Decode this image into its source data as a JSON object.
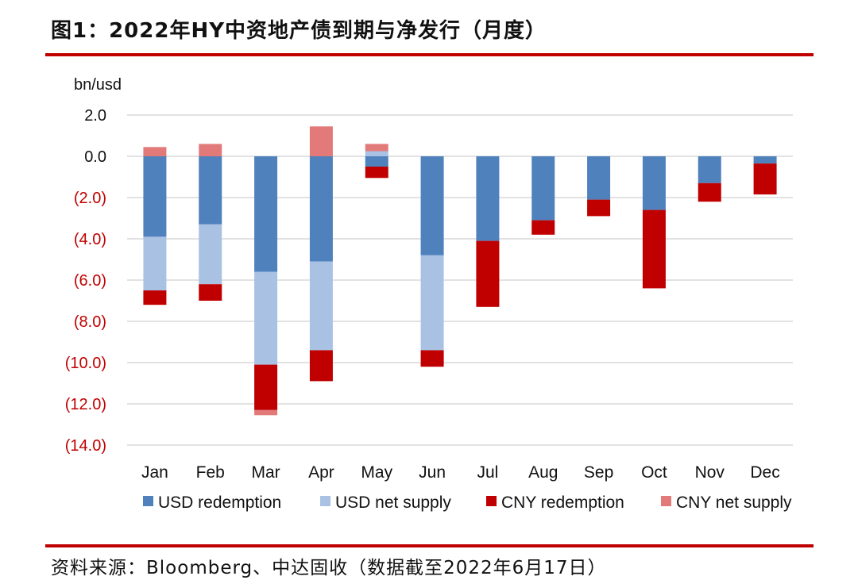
{
  "figure": {
    "title": "图1：2022年HY中资地产债到期与净发行（月度）",
    "source": "资料来源：Bloomberg、中达固收（数据截至2022年6月17日）"
  },
  "chart_data": {
    "type": "bar",
    "stacked": true,
    "ylabel": "bn/usd",
    "ylim": [
      -14,
      2
    ],
    "yticks": [
      2,
      0,
      -2,
      -4,
      -6,
      -8,
      -10,
      -12,
      -14
    ],
    "ytick_labels": [
      "2.0",
      "0.0",
      "(2.0)",
      "(4.0)",
      "(6.0)",
      "(8.0)",
      "(10.0)",
      "(12.0)",
      "(14.0)"
    ],
    "negative_tick_color": "#c00000",
    "grid": true,
    "legend_position": "bottom",
    "categories": [
      "Jan",
      "Feb",
      "Mar",
      "Apr",
      "May",
      "Jun",
      "Jul",
      "Aug",
      "Sep",
      "Oct",
      "Nov",
      "Dec"
    ],
    "series": [
      {
        "name": "USD redemption",
        "color": "#4f81bd",
        "values": [
          -3.9,
          -3.3,
          -5.6,
          -5.1,
          -0.5,
          -4.8,
          -4.1,
          -3.1,
          -2.1,
          -2.6,
          -1.3,
          -0.35
        ]
      },
      {
        "name": "USD net supply",
        "color": "#a9c1e3",
        "values": [
          -2.6,
          -2.9,
          -4.5,
          -4.3,
          0.25,
          -4.6,
          0,
          0,
          0,
          0,
          0,
          0
        ]
      },
      {
        "name": "CNY redemption",
        "color": "#c00000",
        "values": [
          -0.7,
          -0.8,
          -2.2,
          -1.5,
          -0.55,
          -0.8,
          -3.2,
          -0.7,
          -0.8,
          -3.8,
          -0.9,
          -1.5
        ]
      },
      {
        "name": "CNY net supply",
        "color": "#e27a7a",
        "values": [
          0.45,
          0.6,
          -0.25,
          1.45,
          0.35,
          0,
          0,
          0,
          0,
          0,
          0,
          0
        ]
      }
    ]
  }
}
